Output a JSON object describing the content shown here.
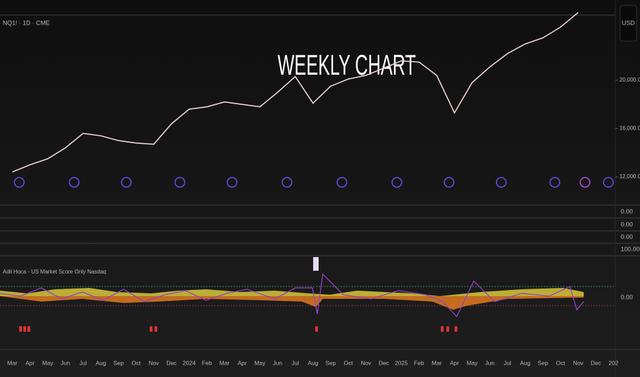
{
  "chart_data": {
    "type": "line",
    "title": "WEEKLY CHART",
    "subtitle": "NQ1! · 1D · CME",
    "currency": "USD",
    "categories": [
      "Mar",
      "Apr",
      "May",
      "Jun",
      "Jul",
      "Aug",
      "Sep",
      "Oct",
      "Nov",
      "Dec",
      "2024",
      "Feb",
      "Mar",
      "Apr",
      "May",
      "Jun",
      "Jul",
      "Aug",
      "Sep",
      "Oct",
      "Nov",
      "Dec",
      "2025",
      "Feb",
      "Mar",
      "Apr",
      "May",
      "Jun",
      "Jul",
      "Aug",
      "Sep",
      "Oct",
      "Nov",
      "Dec",
      "202"
    ],
    "values": [
      12400,
      13000,
      13500,
      14400,
      15600,
      15400,
      15000,
      14800,
      14700,
      16400,
      17600,
      17800,
      18200,
      18000,
      17800,
      19000,
      20300,
      18100,
      19500,
      20100,
      20400,
      21000,
      21600,
      21500,
      20400,
      17300,
      19800,
      21100,
      22200,
      23000,
      23500,
      24400,
      25600,
      null,
      null
    ],
    "color": "#f2d6d6",
    "ylim": [
      9730,
      26640
    ],
    "yticks": [
      {
        "value": 12000,
        "label": "12,000.00"
      },
      {
        "value": 16000,
        "label": "16,000.00"
      },
      {
        "value": 20000,
        "label": "20,000.00"
      }
    ]
  },
  "empty_panes": [
    "0.00",
    "0.00",
    "0.00",
    "100.00"
  ],
  "indicator": {
    "title": "Adil Hoca - US Market Score Only Nasdaq",
    "zero_label": "0.00"
  }
}
